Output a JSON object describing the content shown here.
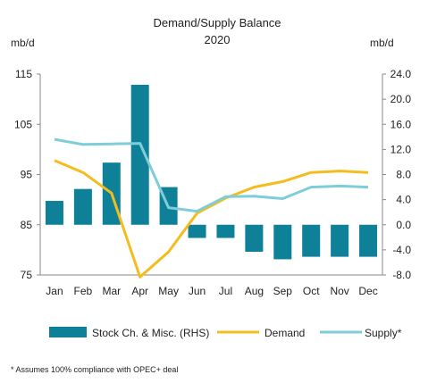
{
  "chart_data": {
    "type": "bar+line",
    "title": "Demand/Supply Balance",
    "subtitle": "2020",
    "y_left_label": "mb/d",
    "y_right_label": "mb/d",
    "y_left_ticks": [
      "115",
      "105",
      "95",
      "85",
      "75"
    ],
    "y_right_ticks": [
      "24.0",
      "20.0",
      "16.0",
      "12.0",
      "8.0",
      "4.0",
      "0.0",
      "-4.0",
      "-8.0"
    ],
    "y_left_range": [
      75,
      115
    ],
    "y_right_range": [
      -8,
      24
    ],
    "categories": [
      "Jan",
      "Feb",
      "Mar",
      "Apr",
      "May",
      "Jun",
      "Jul",
      "Aug",
      "Sep",
      "Oct",
      "Nov",
      "Dec"
    ],
    "bars": {
      "name": "Stock Ch. & Misc. (RHS)",
      "axis": "right",
      "color": "#0e8199",
      "values": [
        3.8,
        5.7,
        9.9,
        22.3,
        6.0,
        -2.1,
        -2.1,
        -4.3,
        -5.5,
        -5.1,
        -5.1,
        -5.1
      ]
    },
    "lines": [
      {
        "name": "Demand",
        "axis": "left",
        "color": "#f2bd1d",
        "values": [
          97.8,
          95.4,
          91.3,
          74.6,
          79.6,
          87.3,
          90.3,
          92.5,
          93.6,
          95.4,
          95.7,
          95.4
        ]
      },
      {
        "name": "Supply*",
        "axis": "left",
        "color": "#7fcdd9",
        "values": [
          102.0,
          101.0,
          101.1,
          101.2,
          88.4,
          87.7,
          90.6,
          90.7,
          90.2,
          92.5,
          92.7,
          92.5
        ]
      }
    ],
    "legend_position": "bottom",
    "gridlines": false
  },
  "footnote": "* Assumes 100% compliance with OPEC+ deal"
}
